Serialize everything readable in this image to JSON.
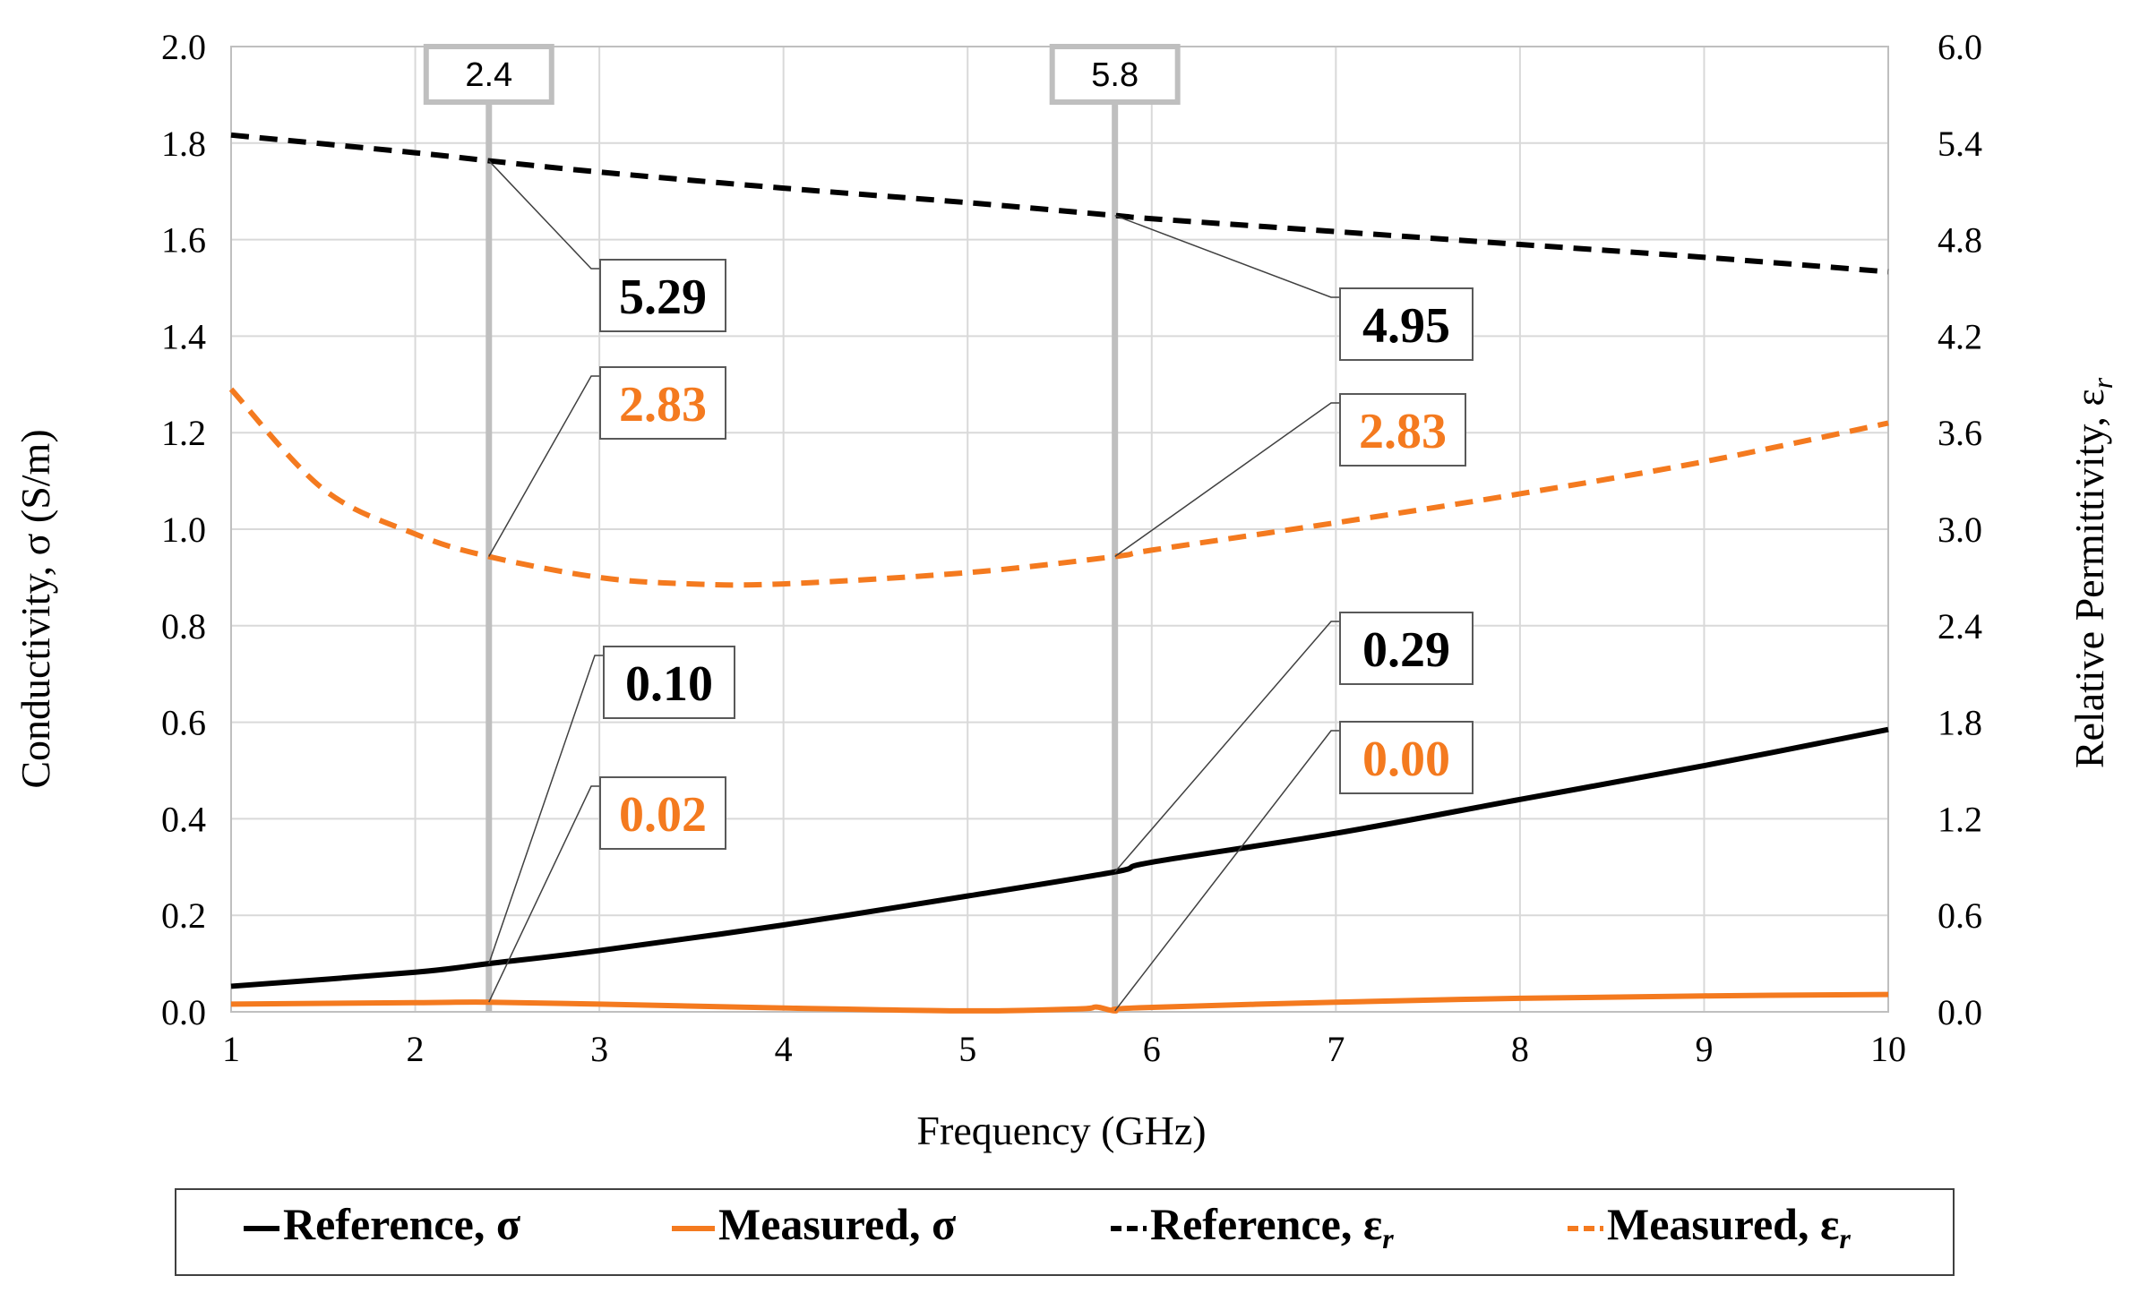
{
  "chart_data": {
    "type": "line",
    "title": "",
    "xlabel": "Frequency (GHz)",
    "ylabel_left": "Conductivity, σ (S/m)",
    "ylabel_right": "Relative Permittivity, ε",
    "ylabel_right_sub": "r",
    "xlim": [
      1,
      10
    ],
    "ylim_left": [
      0,
      2.0
    ],
    "ylim_right": [
      0,
      6.0
    ],
    "x_ticks": [
      1,
      2,
      3,
      4,
      5,
      6,
      7,
      8,
      9,
      10
    ],
    "y_left_ticks": [
      "0.0",
      "0.2",
      "0.4",
      "0.6",
      "0.8",
      "1.0",
      "1.2",
      "1.4",
      "1.6",
      "1.8",
      "2.0"
    ],
    "y_right_ticks": [
      "0.0",
      "0.6",
      "1.2",
      "1.8",
      "2.4",
      "3.0",
      "3.6",
      "4.2",
      "4.8",
      "5.4",
      "6.0"
    ],
    "grid": true,
    "legend_position": "bottom",
    "series": [
      {
        "name": "Reference, σ",
        "axis": "left",
        "color": "#000000",
        "dash": "solid",
        "x": [
          1,
          2,
          2.4,
          3,
          4,
          5,
          5.8,
          6,
          7,
          8,
          9,
          10
        ],
        "values": [
          0.053,
          0.082,
          0.1,
          0.127,
          0.18,
          0.24,
          0.29,
          0.31,
          0.37,
          0.44,
          0.51,
          0.585
        ]
      },
      {
        "name": "Measured, σ",
        "axis": "left",
        "color": "#F47A1F",
        "dash": "solid",
        "x": [
          1,
          2,
          2.4,
          3,
          4,
          5,
          5.6,
          5.7,
          5.8,
          5.9,
          7,
          8,
          9,
          10
        ],
        "values": [
          0.016,
          0.019,
          0.02,
          0.016,
          0.008,
          0.002,
          0.006,
          0.01,
          0.002,
          0.008,
          0.02,
          0.028,
          0.033,
          0.036
        ]
      },
      {
        "name": "Reference, εr",
        "axis": "right",
        "color": "#000000",
        "dash": "dashed",
        "x": [
          1,
          2,
          2.4,
          3,
          4,
          5,
          5.8,
          6,
          7,
          8,
          9,
          10
        ],
        "values": [
          5.45,
          5.34,
          5.29,
          5.22,
          5.12,
          5.03,
          4.95,
          4.93,
          4.85,
          4.77,
          4.69,
          4.6
        ]
      },
      {
        "name": "Measured, εr",
        "axis": "right",
        "color": "#F47A1F",
        "dash": "dashed",
        "x": [
          1,
          1.5,
          2,
          2.4,
          3,
          3.5,
          4,
          5,
          5.8,
          6,
          7,
          8,
          9,
          10
        ],
        "values": [
          3.87,
          3.25,
          2.97,
          2.83,
          2.7,
          2.66,
          2.66,
          2.73,
          2.83,
          2.87,
          3.04,
          3.22,
          3.42,
          3.66
        ]
      }
    ],
    "vertical_markers": [
      {
        "x": 2.4,
        "label": "2.4"
      },
      {
        "x": 5.8,
        "label": "5.8"
      }
    ],
    "annotations": [
      {
        "text": "5.29",
        "color": "#000000",
        "series": "Reference, εr",
        "x": 2.4
      },
      {
        "text": "2.83",
        "color": "#F47A1F",
        "series": "Measured, εr",
        "x": 2.4
      },
      {
        "text": "0.10",
        "color": "#000000",
        "series": "Reference, σ",
        "x": 2.4
      },
      {
        "text": "0.02",
        "color": "#F47A1F",
        "series": "Measured, σ",
        "x": 2.4
      },
      {
        "text": "4.95",
        "color": "#000000",
        "series": "Reference, εr",
        "x": 5.8
      },
      {
        "text": "2.83",
        "color": "#F47A1F",
        "series": "Measured, εr",
        "x": 5.8
      },
      {
        "text": "0.29",
        "color": "#000000",
        "series": "Reference, σ",
        "x": 5.8
      },
      {
        "text": "0.00",
        "color": "#F47A1F",
        "series": "Measured, σ",
        "x": 5.8
      }
    ],
    "legend": [
      {
        "label": "Reference, σ",
        "sub": "",
        "color": "#000000",
        "dash": "solid"
      },
      {
        "label": "Measured, σ",
        "sub": "",
        "color": "#F47A1F",
        "dash": "solid"
      },
      {
        "label": "Reference,  ε",
        "sub": "r",
        "color": "#000000",
        "dash": "dashed"
      },
      {
        "label": "Measured,  ε",
        "sub": "r",
        "color": "#F47A1F",
        "dash": "dashed"
      }
    ]
  }
}
